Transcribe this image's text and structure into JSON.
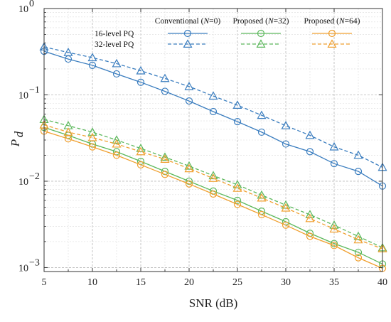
{
  "chart_data": {
    "type": "line",
    "xlabel": "SNR (dB)",
    "ylabel_main": "P",
    "ylabel_sub": "d",
    "xlim": [
      5,
      40
    ],
    "ylim": [
      0.0009,
      1
    ],
    "yscale": "log",
    "grid": true,
    "legend_placement": "top-right",
    "x_ticks": [
      "5",
      "10",
      "15",
      "20",
      "25",
      "30",
      "35",
      "40"
    ],
    "y_ticks": [
      {
        "base": "10",
        "exp": "0"
      },
      {
        "base": "10",
        "exp": "−1"
      },
      {
        "base": "10",
        "exp": "−2"
      },
      {
        "base": "10",
        "exp": "−3"
      }
    ],
    "legend": {
      "columns": [
        {
          "prefix": "Conventional (",
          "italic": "N",
          "suffix": "=0)"
        },
        {
          "prefix": "Proposed (",
          "italic": "N",
          "suffix": "=32)"
        },
        {
          "prefix": "Proposed (",
          "italic": "N",
          "suffix": "=64)"
        }
      ],
      "rows": [
        "16-level PQ",
        "32-level PQ"
      ]
    },
    "colors": {
      "conventional": "#3a7dbf",
      "proposed32": "#5cb85c",
      "proposed64": "#f0a030"
    },
    "series": [
      {
        "scheme": "conventional",
        "level": "16",
        "marker": "circle",
        "dash": false,
        "x": [
          5,
          7.5,
          10,
          12.5,
          15,
          17.5,
          20,
          22.5,
          25,
          27.5,
          30,
          32.5,
          35,
          37.5,
          40
        ],
        "y": [
          0.32,
          0.26,
          0.22,
          0.175,
          0.14,
          0.11,
          0.085,
          0.064,
          0.049,
          0.037,
          0.027,
          0.022,
          0.016,
          0.013,
          0.0088
        ]
      },
      {
        "scheme": "conventional",
        "level": "32",
        "marker": "triangle",
        "dash": true,
        "x": [
          5,
          7.5,
          10,
          12.5,
          15,
          17.5,
          20,
          22.5,
          25,
          27.5,
          30,
          32.5,
          35,
          37.5,
          40
        ],
        "y": [
          0.36,
          0.31,
          0.27,
          0.23,
          0.19,
          0.155,
          0.125,
          0.097,
          0.076,
          0.058,
          0.044,
          0.034,
          0.025,
          0.02,
          0.0145
        ]
      },
      {
        "scheme": "proposed32",
        "level": "16",
        "marker": "circle",
        "dash": false,
        "x": [
          5,
          7.5,
          10,
          12.5,
          15,
          17.5,
          20,
          22.5,
          25,
          27.5,
          30,
          32.5,
          35,
          37.5,
          40
        ],
        "y": [
          0.042,
          0.034,
          0.027,
          0.022,
          0.017,
          0.013,
          0.01,
          0.0077,
          0.006,
          0.0045,
          0.0034,
          0.0025,
          0.0019,
          0.0015,
          0.0011
        ]
      },
      {
        "scheme": "proposed32",
        "level": "32",
        "marker": "triangle",
        "dash": true,
        "x": [
          5,
          7.5,
          10,
          12.5,
          15,
          17.5,
          20,
          22.5,
          25,
          27.5,
          30,
          32.5,
          35,
          37.5,
          40
        ],
        "y": [
          0.052,
          0.044,
          0.037,
          0.03,
          0.024,
          0.019,
          0.015,
          0.0116,
          0.0091,
          0.0069,
          0.0053,
          0.0041,
          0.0031,
          0.0023,
          0.0017
        ]
      },
      {
        "scheme": "proposed64",
        "level": "16",
        "marker": "circle",
        "dash": false,
        "x": [
          5,
          7.5,
          10,
          12.5,
          15,
          17.5,
          20,
          22.5,
          25,
          27.5,
          30,
          32.5,
          35,
          37.5,
          40
        ],
        "y": [
          0.038,
          0.031,
          0.025,
          0.02,
          0.0155,
          0.012,
          0.0093,
          0.0071,
          0.0054,
          0.0041,
          0.0031,
          0.0023,
          0.0018,
          0.0013,
          0.00098
        ]
      },
      {
        "scheme": "proposed64",
        "level": "32",
        "marker": "triangle",
        "dash": true,
        "x": [
          5,
          7.5,
          10,
          12.5,
          15,
          17.5,
          20,
          22.5,
          25,
          27.5,
          30,
          32.5,
          35,
          37.5,
          40
        ],
        "y": [
          0.045,
          0.037,
          0.032,
          0.027,
          0.022,
          0.018,
          0.014,
          0.0108,
          0.0083,
          0.0064,
          0.0049,
          0.0037,
          0.0028,
          0.0021,
          0.00165
        ]
      }
    ]
  }
}
